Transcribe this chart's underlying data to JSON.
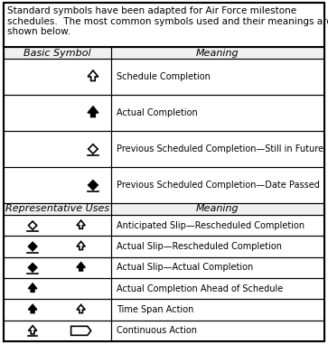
{
  "title_text": "Standard symbols have been adapted for Air Force milestone\nschedules.  The most common symbols used and their meanings are\nshown below.",
  "basic_header": [
    "Basic Symbol",
    "Meaning"
  ],
  "rep_header": [
    "Representative Uses",
    "Meaning"
  ],
  "basic_rows": [
    "Schedule Completion",
    "Actual Completion",
    "Previous Scheduled Completion—Still in Future",
    "Previous Scheduled Completion—Date Passed"
  ],
  "rep_rows": [
    "Anticipated Slip—Rescheduled Completion",
    "Actual Slip—Rescheduled Completion",
    "Actual Slip—Actual Completion",
    "Actual Completion Ahead of Schedule",
    "Time Span Action",
    "Continuous Action"
  ],
  "col_split": 0.335,
  "bg_color": "#ffffff",
  "border_color": "#000000",
  "text_color": "#000000",
  "font_size": 7.0,
  "header_font_size": 8.0,
  "title_font_size": 7.5
}
